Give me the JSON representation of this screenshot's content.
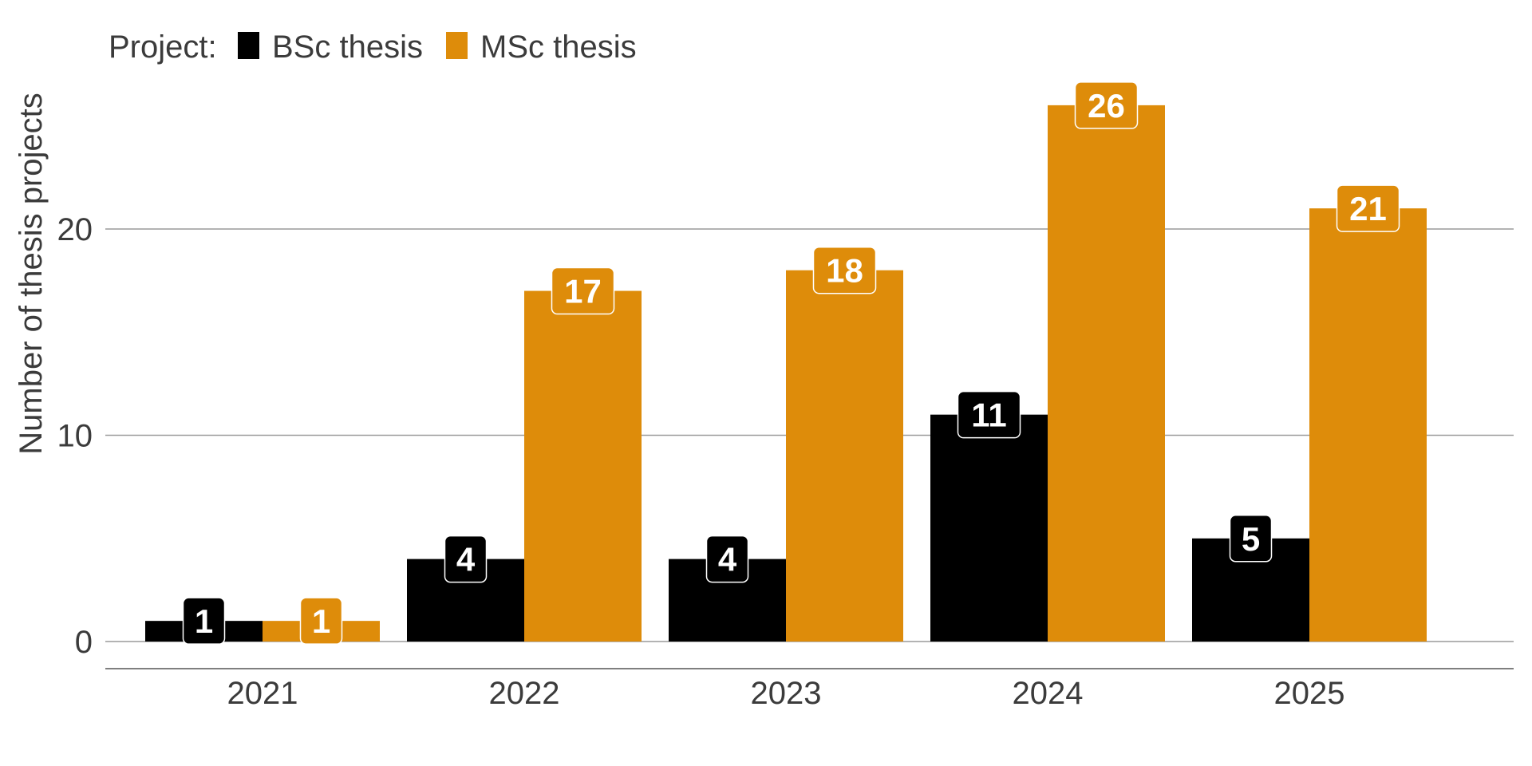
{
  "chart_data": {
    "type": "bar",
    "categories": [
      "2021",
      "2022",
      "2023",
      "2024",
      "2025"
    ],
    "series": [
      {
        "name": "BSc thesis",
        "color": "#000000",
        "values": [
          1,
          4,
          4,
          11,
          5
        ]
      },
      {
        "name": "MSc thesis",
        "color": "#DE8C0A",
        "values": [
          1,
          17,
          18,
          26,
          21
        ]
      }
    ],
    "title": "",
    "xlabel": "",
    "ylabel": "Number of thesis projects",
    "ylim": [
      0,
      27.5
    ],
    "yticks": [
      "0",
      "10",
      "20"
    ],
    "grid": "horizontal",
    "legend": {
      "title": "Project:",
      "placement": "top-left"
    },
    "data_labels": true
  }
}
